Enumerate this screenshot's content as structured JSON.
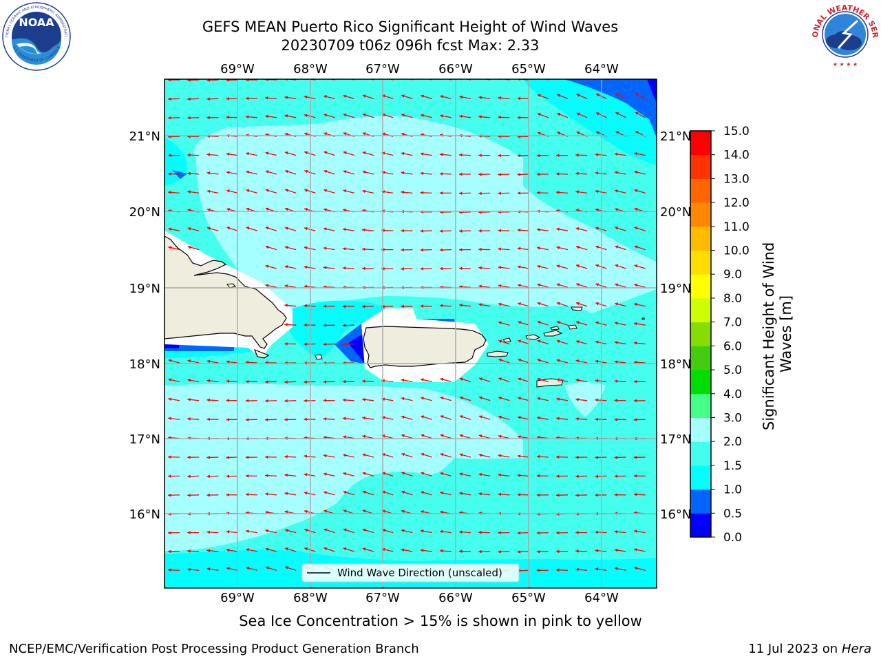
{
  "header": {
    "title_line1": "GEFS MEAN Puerto Rico Significant Height of Wind Waves",
    "title_line2": "20230709 t06z 096h fcst   Max: 2.33"
  },
  "logos": {
    "left": {
      "name": "NOAA",
      "ring_top": "NATIONAL OCEANIC AND ATMOSPHERIC ADMINISTRATION",
      "ring_bottom": "U.S. DEPARTMENT OF COMMERCE",
      "icon": "noaa-logo"
    },
    "right": {
      "ring_text": "NATIONAL WEATHER SERVICE",
      "icon": "nws-logo"
    }
  },
  "map": {
    "lon_labels": [
      "69°W",
      "68°W",
      "67°W",
      "66°W",
      "65°W",
      "64°W"
    ],
    "lat_labels": [
      "21°N",
      "20°N",
      "19°N",
      "18°N",
      "17°N",
      "16°N"
    ],
    "legend_label": "Wind Wave Direction (unscaled)",
    "arrow_color": "#ff0000",
    "land_color": "#efedde"
  },
  "colorbar": {
    "label": "Significant Height of Wind Waves [m]",
    "label_line1": "Significant Height of Wind",
    "label_line2": "Waves [m]",
    "ticks": [
      "0.0",
      "0.5",
      "1.0",
      "1.5",
      "2.0",
      "3.0",
      "4.0",
      "5.0",
      "6.0",
      "7.0",
      "8.0",
      "9.0",
      "10.0",
      "11.0",
      "12.0",
      "13.0",
      "14.0",
      "15.0"
    ],
    "colors": [
      "#0000ff",
      "#0066ff",
      "#00ffff",
      "#44ffee",
      "#a6ffff",
      "#44ff88",
      "#00dd00",
      "#44cc11",
      "#88dd00",
      "#ccff00",
      "#ffff00",
      "#ffdd00",
      "#ffbb00",
      "#ff8800",
      "#ff6600",
      "#ff3300",
      "#ff0000"
    ]
  },
  "notes": {
    "sea_ice": "Sea Ice Concentration > 15% is shown in pink to yellow"
  },
  "footer": {
    "left": "NCEP/EMC/Verification Post Processing Product Generation Branch",
    "date": "11 Jul 2023 on ",
    "host": "Hera"
  }
}
